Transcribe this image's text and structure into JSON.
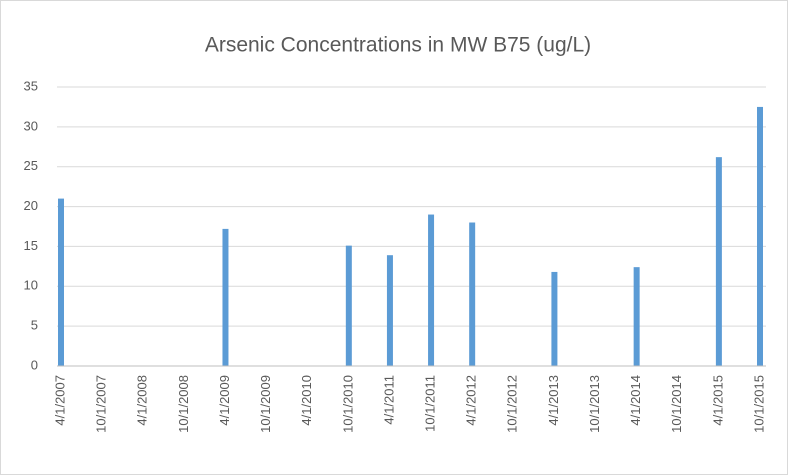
{
  "chart_data": {
    "type": "bar",
    "title": "Arsenic Concentrations in MW B75 (ug/L)",
    "categories": [
      "4/1/2007",
      "10/1/2007",
      "4/1/2008",
      "10/1/2008",
      "4/1/2009",
      "10/1/2009",
      "4/1/2010",
      "10/1/2010",
      "4/1/2011",
      "10/1/2011",
      "4/1/2012",
      "10/1/2012",
      "4/1/2013",
      "10/1/2013",
      "4/1/2014",
      "10/1/2014",
      "4/1/2015",
      "10/1/2015"
    ],
    "values": [
      21,
      null,
      null,
      null,
      17.2,
      null,
      null,
      15.1,
      13.9,
      19,
      18,
      null,
      11.8,
      null,
      12.4,
      null,
      26.2,
      32.5
    ],
    "color": "#5b9bd5",
    "ylim": [
      0,
      35
    ],
    "yticks": [
      0,
      5,
      10,
      15,
      20,
      25,
      30,
      35
    ],
    "grid": true
  }
}
